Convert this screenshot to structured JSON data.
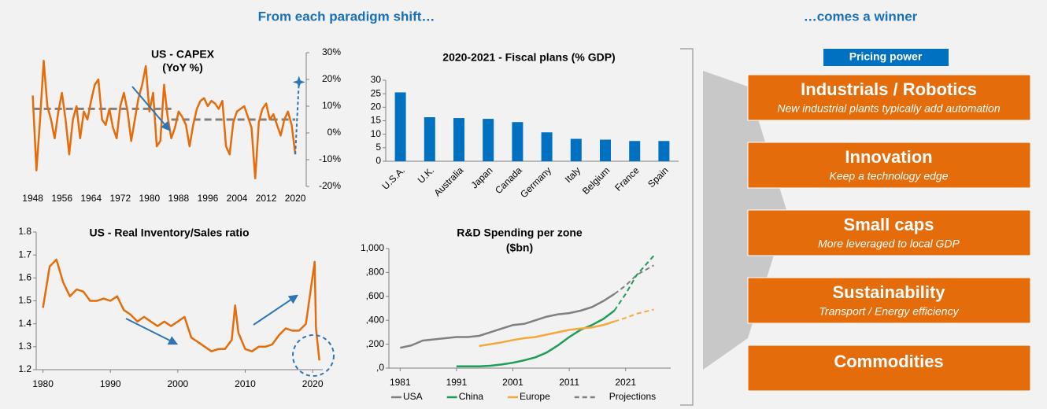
{
  "headers": {
    "left": "From each paradigm shift…",
    "right": "…comes a winner"
  },
  "pricing_label": "Pricing power",
  "boxes": [
    {
      "title": "Industrials / Robotics",
      "subtitle": "New industrial plants typically add automation"
    },
    {
      "title": "Innovation",
      "subtitle": "Keep a technology edge"
    },
    {
      "title": "Small caps",
      "subtitle": "More leveraged to local GDP"
    },
    {
      "title": "Sustainability",
      "subtitle": "Transport / Energy efficiency"
    },
    {
      "title": "Commodities"
    }
  ],
  "chart_data": [
    {
      "type": "line",
      "title": "US - CAPEX",
      "subtitle": "(YoY %)",
      "x": [
        1948,
        1949,
        1950,
        1951,
        1952,
        1953,
        1954,
        1955,
        1956,
        1957,
        1958,
        1959,
        1960,
        1961,
        1962,
        1963,
        1964,
        1965,
        1966,
        1967,
        1968,
        1969,
        1970,
        1971,
        1972,
        1973,
        1974,
        1975,
        1976,
        1977,
        1978,
        1979,
        1980,
        1981,
        1982,
        1983,
        1984,
        1985,
        1986,
        1987,
        1988,
        1989,
        1990,
        1991,
        1992,
        1993,
        1994,
        1995,
        1996,
        1997,
        1998,
        1999,
        2000,
        2001,
        2002,
        2003,
        2004,
        2005,
        2006,
        2007,
        2008,
        2009,
        2010,
        2011,
        2012,
        2013,
        2014,
        2015,
        2016,
        2017,
        2018,
        2019,
        2020
      ],
      "series": [
        {
          "color": "#e46c0a",
          "values": [
            14,
            -14,
            5,
            27,
            10,
            5,
            -2,
            8,
            15,
            5,
            -8,
            5,
            10,
            -2,
            8,
            5,
            12,
            18,
            20,
            5,
            3,
            9,
            2,
            -2,
            10,
            15,
            8,
            -3,
            5,
            13,
            18,
            25,
            8,
            15,
            -5,
            -3,
            18,
            6,
            -2,
            2,
            8,
            6,
            3,
            -5,
            3,
            9,
            12,
            13,
            10,
            12,
            11,
            9,
            12,
            -5,
            -8,
            4,
            8,
            9,
            10,
            6,
            2,
            -17,
            4,
            9,
            11,
            5,
            7,
            3,
            -1,
            5,
            8,
            3,
            -8
          ]
        }
      ],
      "averages": [
        {
          "x": [
            1948,
            1986
          ],
          "value": 9
        },
        {
          "x": [
            1986,
            2020
          ],
          "value": 5
        }
      ],
      "averages_color": "#808080",
      "projection": {
        "x": 2021,
        "value": 19,
        "color": "#2e75b6"
      },
      "xlim": [
        1947,
        2023
      ],
      "xticks": [
        1948,
        1956,
        1964,
        1972,
        1980,
        1988,
        1996,
        2004,
        2012,
        2020
      ],
      "ylim": [
        -20,
        30
      ],
      "y_axis_side": "right",
      "yticks": [
        {
          "value": -20,
          "label": "-20%"
        },
        {
          "value": -10,
          "label": "-10%"
        },
        {
          "value": 0,
          "label": "0%"
        },
        {
          "value": 10,
          "label": "10%"
        },
        {
          "value": 20,
          "label": "20%"
        },
        {
          "value": 30,
          "label": "30%"
        }
      ]
    },
    {
      "type": "bar",
      "title": "2020-2021 - Fiscal plans (% GDP)",
      "categories": [
        "U.S.A.",
        "U.K.",
        "Australia",
        "Japan",
        "Canada",
        "Germany",
        "Italy",
        "Belgium",
        "France",
        "Spain"
      ],
      "values": [
        25.5,
        16.3,
        16,
        15.7,
        14.5,
        10.7,
        8.3,
        8,
        7.5,
        7.5
      ],
      "color": "#0070c0",
      "ylim": [
        0,
        30
      ],
      "yticks": [
        0,
        5,
        10,
        15,
        20,
        25,
        30
      ]
    },
    {
      "type": "line",
      "title": "US - Real Inventory/Sales ratio",
      "x": [
        1980,
        1981,
        1982,
        1983,
        1984,
        1985,
        1986,
        1987,
        1988,
        1989,
        1990,
        1991,
        1992,
        1993,
        1994,
        1995,
        1996,
        1997,
        1998,
        1999,
        2000,
        2001,
        2002,
        2003,
        2004,
        2005,
        2006,
        2007,
        2008,
        2008.5,
        2009,
        2010,
        2011,
        2012,
        2013,
        2014,
        2015,
        2016,
        2017,
        2018,
        2019,
        2020.3,
        2020.5,
        2021
      ],
      "series": [
        {
          "color": "#e46c0a",
          "values": [
            1.47,
            1.65,
            1.68,
            1.58,
            1.52,
            1.55,
            1.54,
            1.5,
            1.5,
            1.51,
            1.5,
            1.52,
            1.46,
            1.44,
            1.41,
            1.43,
            1.41,
            1.39,
            1.41,
            1.39,
            1.41,
            1.43,
            1.34,
            1.32,
            1.3,
            1.28,
            1.29,
            1.29,
            1.33,
            1.48,
            1.36,
            1.29,
            1.28,
            1.3,
            1.3,
            1.31,
            1.35,
            1.38,
            1.37,
            1.37,
            1.4,
            1.67,
            1.38,
            1.24
          ]
        }
      ],
      "xlim": [
        1979,
        2021.5
      ],
      "xticks": [
        1980,
        1990,
        2000,
        2010,
        2020
      ],
      "ylim": [
        1.2,
        1.8
      ],
      "yticks": [
        1.2,
        1.3,
        1.4,
        1.5,
        1.6,
        1.7,
        1.8
      ]
    },
    {
      "type": "line",
      "title": "R&D Spending per zone",
      "subtitle": "($bn)",
      "x": [
        1981,
        1983,
        1985,
        1987,
        1989,
        1991,
        1993,
        1995,
        1997,
        1999,
        2001,
        2003,
        2005,
        2007,
        2009,
        2011,
        2013,
        2015,
        2017,
        2019,
        2021,
        2023,
        2026
      ],
      "series": [
        {
          "name": "USA",
          "color": "#808080",
          "values": [
            170,
            190,
            230,
            240,
            250,
            260,
            260,
            270,
            300,
            330,
            360,
            370,
            400,
            430,
            450,
            460,
            480,
            510,
            560,
            620,
            null,
            null,
            null
          ],
          "projection": [
            null,
            null,
            null,
            null,
            null,
            null,
            null,
            null,
            null,
            null,
            null,
            null,
            null,
            null,
            null,
            null,
            null,
            null,
            null,
            620,
            690,
            780,
            860
          ]
        },
        {
          "name": "China",
          "color": "#1e9c5a",
          "values": [
            null,
            null,
            null,
            null,
            null,
            15,
            15,
            15,
            20,
            30,
            45,
            65,
            90,
            130,
            190,
            260,
            320,
            360,
            410,
            480,
            null,
            null,
            null
          ],
          "projection": [
            null,
            null,
            null,
            null,
            null,
            null,
            null,
            null,
            null,
            null,
            null,
            null,
            null,
            null,
            null,
            null,
            null,
            null,
            null,
            480,
            620,
            780,
            940
          ]
        },
        {
          "name": "Europe",
          "color": "#f5a83c",
          "values": [
            null,
            null,
            null,
            null,
            null,
            null,
            null,
            185,
            200,
            215,
            235,
            250,
            260,
            280,
            300,
            320,
            330,
            340,
            360,
            390,
            null,
            null,
            null
          ],
          "projection": [
            null,
            null,
            null,
            null,
            null,
            null,
            null,
            null,
            null,
            null,
            null,
            null,
            null,
            null,
            null,
            null,
            null,
            null,
            null,
            390,
            420,
            455,
            490
          ]
        }
      ],
      "projection_legend": "Projections",
      "projection_color": "#808080",
      "xlim": [
        1979,
        2029
      ],
      "xticks": [
        1981,
        1991,
        2001,
        2011,
        2021
      ],
      "ylim": [
        0,
        1000
      ],
      "yticks": [
        {
          "value": 0,
          "label": ",0"
        },
        {
          "value": 200,
          "label": ",200"
        },
        {
          "value": 400,
          "label": ",400"
        },
        {
          "value": 600,
          "label": ",600"
        },
        {
          "value": 800,
          "label": ",800"
        },
        {
          "value": 1000,
          "label": "1,000"
        }
      ]
    }
  ]
}
